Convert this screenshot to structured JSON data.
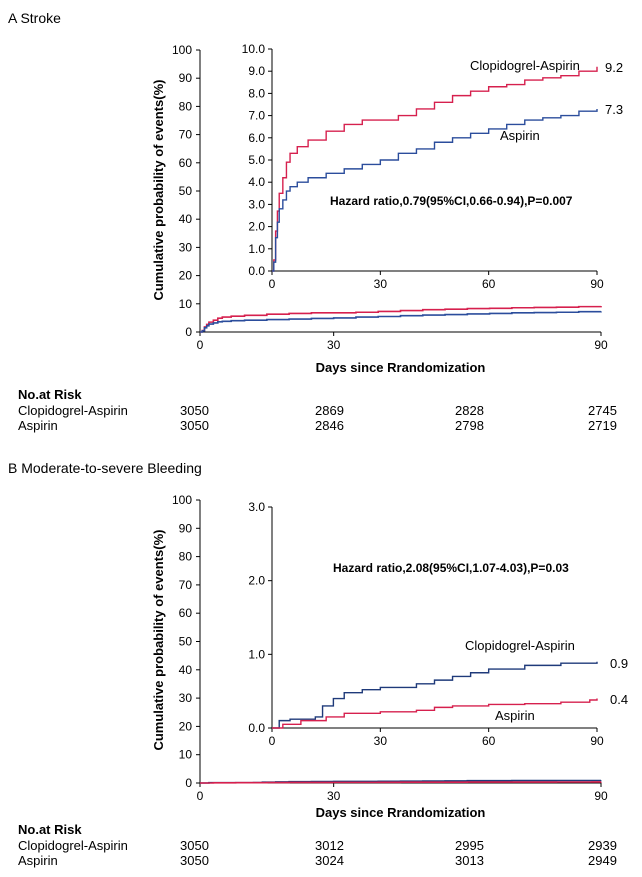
{
  "chart_data": [
    {
      "panel": "A Stroke",
      "type": "line",
      "ylabel": "Cumulative probability of events(%)",
      "xlabel": "Days since Rrandomization",
      "xlim": [
        0,
        90
      ],
      "ylim": [
        0,
        100
      ],
      "xticks": [
        "0",
        "30",
        "90"
      ],
      "yticks": [
        "0",
        "10",
        "20",
        "30",
        "40",
        "50",
        "60",
        "70",
        "80",
        "90",
        "100"
      ],
      "inset": {
        "xlim": [
          0,
          90
        ],
        "ylim": [
          0,
          10
        ],
        "xticks": [
          "0",
          "30",
          "60",
          "90"
        ],
        "yticks": [
          "0.0",
          "1.0",
          "2.0",
          "3.0",
          "4.0",
          "5.0",
          "6.0",
          "7.0",
          "8.0",
          "9.0",
          "10.0"
        ],
        "annotation": "Hazard ratio,0.79(95%CI,0.66-0.94),P=0.007"
      },
      "series": [
        {
          "name": "Clopidogrel-Aspirin",
          "color": "#d6204e",
          "end_label": "9.2",
          "points": [
            [
              0,
              0
            ],
            [
              0.5,
              0.5
            ],
            [
              1,
              1.8
            ],
            [
              1.5,
              2.7
            ],
            [
              2,
              3.5
            ],
            [
              3,
              4.2
            ],
            [
              4,
              4.9
            ],
            [
              5,
              5.3
            ],
            [
              7,
              5.6
            ],
            [
              10,
              5.9
            ],
            [
              15,
              6.3
            ],
            [
              20,
              6.6
            ],
            [
              25,
              6.8
            ],
            [
              30,
              6.8
            ],
            [
              35,
              7.0
            ],
            [
              40,
              7.3
            ],
            [
              45,
              7.6
            ],
            [
              50,
              7.9
            ],
            [
              55,
              8.1
            ],
            [
              60,
              8.3
            ],
            [
              65,
              8.4
            ],
            [
              70,
              8.6
            ],
            [
              75,
              8.7
            ],
            [
              80,
              8.8
            ],
            [
              85,
              9.0
            ],
            [
              90,
              9.2
            ]
          ]
        },
        {
          "name": "Aspirin",
          "color": "#2b4d9c",
          "end_label": "7.3",
          "points": [
            [
              0,
              0
            ],
            [
              0.5,
              0.4
            ],
            [
              1,
              1.5
            ],
            [
              1.5,
              2.2
            ],
            [
              2,
              2.8
            ],
            [
              3,
              3.2
            ],
            [
              4,
              3.6
            ],
            [
              5,
              3.8
            ],
            [
              7,
              4.0
            ],
            [
              10,
              4.2
            ],
            [
              15,
              4.4
            ],
            [
              20,
              4.6
            ],
            [
              25,
              4.8
            ],
            [
              30,
              5.0
            ],
            [
              35,
              5.3
            ],
            [
              40,
              5.5
            ],
            [
              45,
              5.8
            ],
            [
              50,
              6.0
            ],
            [
              55,
              6.2
            ],
            [
              60,
              6.4
            ],
            [
              65,
              6.6
            ],
            [
              70,
              6.8
            ],
            [
              75,
              6.9
            ],
            [
              80,
              7.0
            ],
            [
              85,
              7.2
            ],
            [
              90,
              7.3
            ]
          ]
        }
      ],
      "risk_table": {
        "header": "No.at Risk",
        "rows": [
          {
            "label": "Clopidogrel-Aspirin",
            "values": [
              "3050",
              "2869",
              "2828",
              "2745"
            ]
          },
          {
            "label": "Aspirin",
            "values": [
              "3050",
              "2846",
              "2798",
              "2719"
            ]
          }
        ]
      }
    },
    {
      "panel": "B Moderate-to-severe Bleeding",
      "type": "line",
      "ylabel": "Cumulative probability of events(%)",
      "xlabel": "Days since Rrandomization",
      "xlim": [
        0,
        90
      ],
      "ylim": [
        0,
        100
      ],
      "xticks": [
        "0",
        "30",
        "90"
      ],
      "yticks": [
        "0",
        "10",
        "20",
        "30",
        "40",
        "50",
        "60",
        "70",
        "80",
        "90",
        "100"
      ],
      "inset": {
        "xlim": [
          0,
          90
        ],
        "ylim": [
          0,
          3
        ],
        "xticks": [
          "0",
          "30",
          "60",
          "90"
        ],
        "yticks": [
          "0.0",
          "1.0",
          "2.0",
          "3.0"
        ],
        "annotation": "Hazard ratio,2.08(95%CI,1.07-4.03),P=0.03"
      },
      "series": [
        {
          "name": "Clopidogrel-Aspirin",
          "color": "#1f3a7a",
          "end_label": "0.9",
          "points": [
            [
              0,
              0
            ],
            [
              2,
              0.1
            ],
            [
              5,
              0.12
            ],
            [
              12,
              0.15
            ],
            [
              14,
              0.3
            ],
            [
              17,
              0.4
            ],
            [
              20,
              0.48
            ],
            [
              25,
              0.52
            ],
            [
              30,
              0.55
            ],
            [
              40,
              0.6
            ],
            [
              45,
              0.65
            ],
            [
              50,
              0.7
            ],
            [
              55,
              0.75
            ],
            [
              60,
              0.8
            ],
            [
              70,
              0.85
            ],
            [
              80,
              0.88
            ],
            [
              90,
              0.9
            ]
          ]
        },
        {
          "name": "Aspirin",
          "color": "#d6204e",
          "end_label": "0.4",
          "points": [
            [
              0,
              0
            ],
            [
              3,
              0.05
            ],
            [
              8,
              0.1
            ],
            [
              15,
              0.15
            ],
            [
              20,
              0.2
            ],
            [
              30,
              0.22
            ],
            [
              40,
              0.24
            ],
            [
              45,
              0.28
            ],
            [
              50,
              0.3
            ],
            [
              60,
              0.32
            ],
            [
              70,
              0.33
            ],
            [
              80,
              0.35
            ],
            [
              88,
              0.38
            ],
            [
              90,
              0.4
            ]
          ]
        }
      ],
      "risk_table": {
        "header": "No.at Risk",
        "rows": [
          {
            "label": "Clopidogrel-Aspirin",
            "values": [
              "3050",
              "3012",
              "2995",
              "2939"
            ]
          },
          {
            "label": "Aspirin",
            "values": [
              "3050",
              "3024",
              "3013",
              "2949"
            ]
          }
        ]
      }
    }
  ]
}
